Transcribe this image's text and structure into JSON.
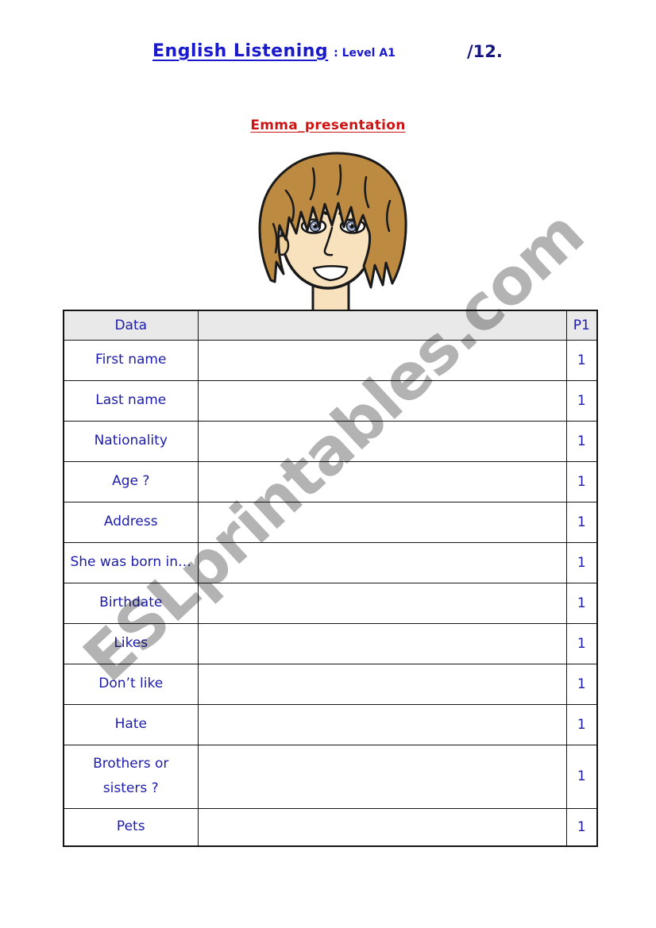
{
  "header": {
    "title": "English Listening",
    "level": ": Level A1",
    "score": "/12."
  },
  "subtitle": "Emma_presentation",
  "watermark": "ESLprintables.com",
  "illustration": {
    "name": "emma-portrait"
  },
  "table": {
    "header": {
      "data_col": "Data",
      "answer_col": "",
      "points_col": "P1"
    },
    "rows": [
      {
        "label": "First name",
        "answer": "",
        "points": "1"
      },
      {
        "label": "Last name",
        "answer": "",
        "points": "1"
      },
      {
        "label": "Nationality",
        "answer": "",
        "points": "1"
      },
      {
        "label": "Age ?",
        "answer": "",
        "points": "1"
      },
      {
        "label": "Address",
        "answer": "",
        "points": "1"
      },
      {
        "label": "She was born in…",
        "answer": "",
        "points": "1"
      },
      {
        "label": "Birthdate",
        "answer": "",
        "points": "1"
      },
      {
        "label": "Likes",
        "answer": "",
        "points": "1"
      },
      {
        "label": "Don’t like",
        "answer": "",
        "points": "1"
      },
      {
        "label": "Hate",
        "answer": "",
        "points": "1"
      },
      {
        "label": "Brothers or sisters ?",
        "answer": "",
        "points": "1"
      },
      {
        "label": "Pets",
        "answer": "",
        "points": "1"
      }
    ]
  },
  "colors": {
    "title_blue": "#1a1acc",
    "table_blue": "#1c1caa",
    "score_navy": "#17177e",
    "subtitle_red": "#cc1414",
    "header_bg": "#e9e9e9",
    "watermark_gray": "#b3b3b3",
    "hair": "#bd8a42",
    "skin": "#f7e2bd",
    "iris": "#96a5c8"
  }
}
